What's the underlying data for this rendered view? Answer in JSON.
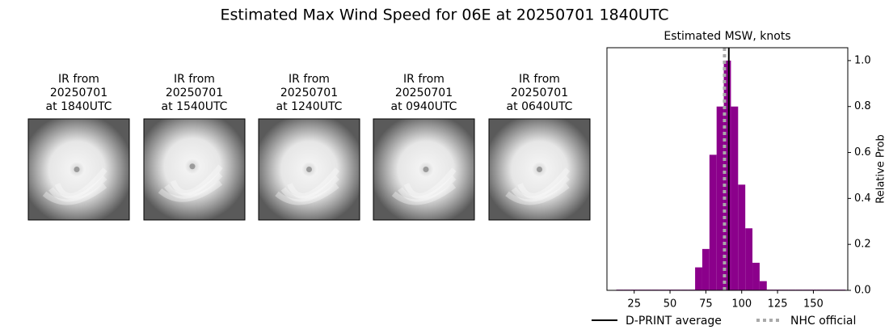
{
  "title": "Estimated Max Wind Speed for 06E at 20250701 1840UTC",
  "panels": [
    {
      "lines": [
        "IR from",
        "20250701",
        "at 1840UTC"
      ]
    },
    {
      "lines": [
        "IR from",
        "20250701",
        "at 1540UTC"
      ]
    },
    {
      "lines": [
        "IR from",
        "20250701",
        "at 1240UTC"
      ]
    },
    {
      "lines": [
        "IR from",
        "20250701",
        "at 0940UTC"
      ]
    },
    {
      "lines": [
        "IR from",
        "20250701",
        "at 0640UTC"
      ]
    }
  ],
  "chart_data": {
    "type": "histogram",
    "title": "Estimated MSW, knots",
    "ylabel": "Relative Prob",
    "color": "#8b008b",
    "bins": [
      12.5,
      17.5,
      22.5,
      27.5,
      32.5,
      37.5,
      42.5,
      47.5,
      52.5,
      57.5,
      62.5,
      67.5,
      72.5,
      77.5,
      82.5,
      87.5,
      92.5,
      97.5,
      102.5,
      107.5,
      112.5,
      117.5,
      122.5,
      127.5,
      132.5,
      137.5,
      142.5,
      147.5,
      152.5,
      157.5,
      162.5,
      167.5,
      172.5
    ],
    "values": [
      0.003,
      0.003,
      0.003,
      0.003,
      0.003,
      0.003,
      0.003,
      0.003,
      0.003,
      0.003,
      0.003,
      0.1,
      0.18,
      0.59,
      0.8,
      1.0,
      0.8,
      0.46,
      0.27,
      0.12,
      0.04,
      0.003,
      0.003,
      0.003,
      0.003,
      0.003,
      0.003,
      0.003,
      0.003,
      0.003,
      0.003,
      0.003
    ],
    "xlim": [
      6,
      174
    ],
    "ylim": [
      0,
      1.056
    ],
    "xticks": [
      25,
      50,
      75,
      100,
      125,
      150
    ],
    "yticks": [
      {
        "value": 0,
        "label": "0.0"
      },
      {
        "value": 0.2,
        "label": "0.2"
      },
      {
        "value": 0.4,
        "label": "0.4"
      },
      {
        "value": 0.6,
        "label": "0.6"
      },
      {
        "value": 0.8,
        "label": "0.8"
      },
      {
        "value": 1.0,
        "label": "1.0"
      }
    ],
    "vlines": [
      {
        "name": "D-PRINT average",
        "value": 91,
        "color": "#000000",
        "style": "solid"
      },
      {
        "name": "NHC official",
        "value": 88,
        "color": "#a9a9a9",
        "style": "dotted"
      }
    ]
  }
}
